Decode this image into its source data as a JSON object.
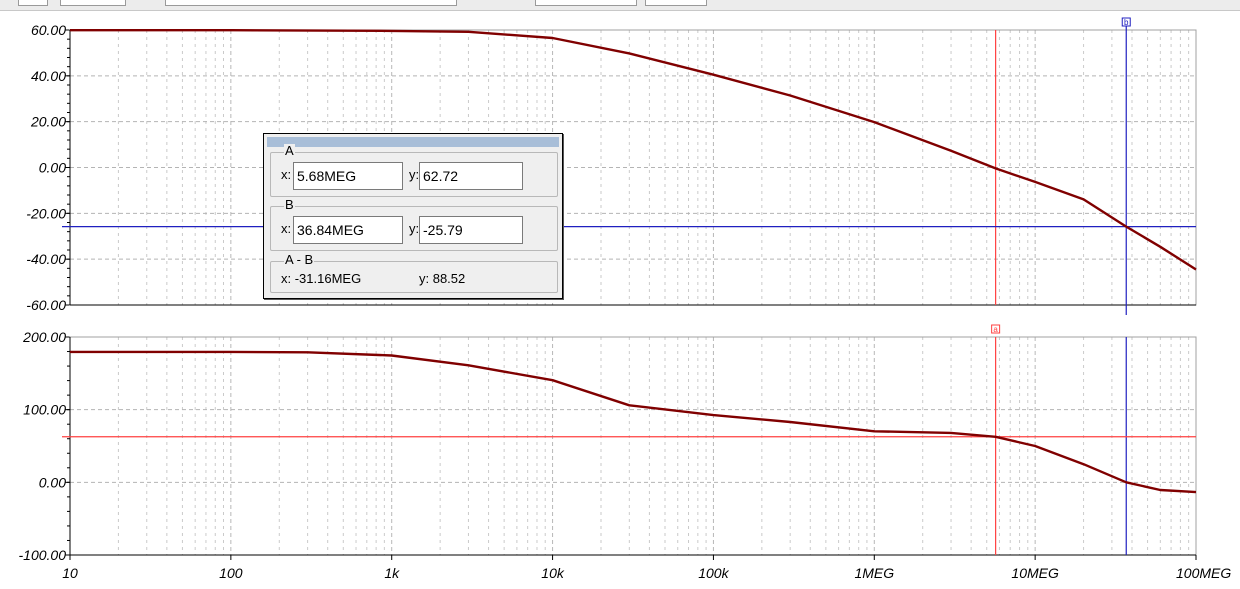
{
  "chart_data": [
    {
      "type": "line",
      "x_scale": "log",
      "xlim": [
        10,
        100000000
      ],
      "ylim": [
        -60,
        60
      ],
      "yticks": [
        60,
        40,
        20,
        0,
        -20,
        -40,
        -60
      ],
      "ytick_labels": [
        "60.00",
        "40.00",
        "20.00",
        "0.00",
        "-20.00",
        "-40.00",
        "-60.00"
      ],
      "grid": true,
      "series": [
        {
          "color": "#800000",
          "x": [
            10,
            100,
            1000,
            3000,
            10000,
            30000,
            100000,
            300000,
            1000000,
            3000000,
            5680000,
            10000000,
            20000000,
            36840000,
            60000000,
            100000000
          ],
          "y": [
            59.9,
            59.9,
            59.6,
            59.2,
            56.5,
            49.8,
            40.5,
            31.4,
            19.8,
            7.3,
            -0.4,
            -6.3,
            -13.9,
            -25.8,
            -34.6,
            -44.5
          ]
        }
      ],
      "cursor_A_x": 5680000,
      "cursor_B_x": 36840000,
      "cursor_B_y": -25.79
    },
    {
      "type": "line",
      "x_scale": "log",
      "xlim": [
        10,
        100000000
      ],
      "ylim": [
        -100,
        200
      ],
      "yticks": [
        200,
        100,
        0,
        -100
      ],
      "ytick_labels": [
        "200.00",
        "100.00",
        "0.00",
        "-100.00"
      ],
      "grid": true,
      "x_tick_values": [
        10,
        100,
        1000,
        10000,
        100000,
        1000000,
        10000000,
        100000000
      ],
      "x_tick_labels": [
        "10",
        "100",
        "1k",
        "10k",
        "100k",
        "1MEG",
        "10MEG",
        "100MEG"
      ],
      "series": [
        {
          "color": "#800000",
          "x": [
            10,
            100,
            300,
            1000,
            3000,
            10000,
            30000,
            100000,
            300000,
            1000000,
            3000000,
            5680000,
            10000000,
            20000000,
            36840000,
            60000000,
            100000000
          ],
          "y": [
            179.5,
            179.5,
            179,
            174.5,
            161,
            140.5,
            106,
            92.5,
            83,
            70.2,
            68,
            62.7,
            50,
            25,
            0,
            -10.5,
            -13.5
          ]
        }
      ],
      "cursor_A_x": 5680000,
      "cursor_A_y": 62.72,
      "cursor_B_x": 36840000
    }
  ],
  "cursor_panel": {
    "a": {
      "label": "A",
      "x_label": "x:",
      "x_value": "5.68MEG",
      "y_label": "y:",
      "y_value": "62.72"
    },
    "b": {
      "label": "B",
      "x_label": "x:",
      "x_value": "36.84MEG",
      "y_label": "y:",
      "y_value": "-25.79"
    },
    "diff": {
      "label": "A - B",
      "x_text": "x:  -31.16MEG",
      "y_text": "y: 88.52"
    }
  },
  "colors": {
    "trace": "#800000",
    "cursor_a": "#ff4040",
    "cursor_b": "#2020c0",
    "grid": "#b4b4b4"
  },
  "markers": {
    "a": "a",
    "b": "b"
  }
}
